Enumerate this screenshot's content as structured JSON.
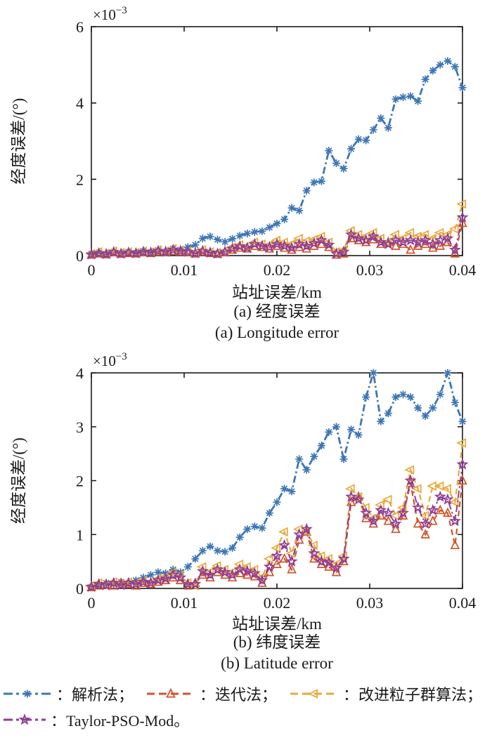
{
  "page": {
    "background": "#ffffff",
    "axis_color": "#1a1a1a",
    "text_color": "#1a1a1a"
  },
  "chart_data": [
    {
      "type": "line",
      "scale_base": "×10",
      "scale_exp": "−3",
      "unit_multiplier": 0.001,
      "xlabel": "站址误差/km",
      "ylabel": "经度误差/(°)",
      "captions": [
        "(a) 经度误差",
        "(a) Longitude error"
      ],
      "xlim": [
        0,
        0.04
      ],
      "ylim": [
        0,
        6
      ],
      "xticks": [
        0,
        0.01,
        0.02,
        0.03,
        0.04
      ],
      "xtick_labels": [
        "0",
        "0.01",
        "0.02",
        "0.03",
        "0.04"
      ],
      "yticks": [
        0,
        2,
        4,
        6
      ],
      "grid": false,
      "legend_position": "outside-bottom",
      "x": [
        0,
        0.0008,
        0.0016,
        0.0024,
        0.0032,
        0.004,
        0.0048,
        0.0056,
        0.0064,
        0.0072,
        0.008,
        0.0088,
        0.0096,
        0.0104,
        0.0112,
        0.012,
        0.0128,
        0.0136,
        0.0144,
        0.0152,
        0.016,
        0.0168,
        0.0176,
        0.0184,
        0.0192,
        0.02,
        0.0208,
        0.0216,
        0.0224,
        0.0232,
        0.024,
        0.0248,
        0.0256,
        0.0264,
        0.0272,
        0.028,
        0.0288,
        0.0296,
        0.0304,
        0.0312,
        0.032,
        0.0328,
        0.0336,
        0.0344,
        0.0352,
        0.036,
        0.0368,
        0.0376,
        0.0384,
        0.0392,
        0.04
      ],
      "series": [
        {
          "name": "解析法",
          "color": "#3E76B5",
          "marker": "asterisk",
          "linestyle": "dashdot",
          "width": 2.8,
          "values": [
            0.05,
            0.08,
            0.04,
            0.1,
            0.06,
            0.1,
            0.07,
            0.12,
            0.09,
            0.14,
            0.1,
            0.18,
            0.15,
            0.22,
            0.28,
            0.45,
            0.5,
            0.42,
            0.36,
            0.44,
            0.52,
            0.58,
            0.62,
            0.64,
            0.74,
            0.84,
            0.95,
            1.25,
            1.18,
            1.7,
            1.92,
            1.95,
            2.75,
            2.42,
            2.28,
            2.8,
            3.05,
            3.02,
            3.3,
            3.6,
            3.35,
            4.1,
            4.15,
            4.18,
            4.05,
            4.62,
            4.85,
            5.0,
            5.1,
            4.95,
            4.4
          ]
        },
        {
          "name": "迭代法",
          "color": "#D3532B",
          "marker": "triangle-up",
          "linestyle": "dashed",
          "width": 2.2,
          "values": [
            0.02,
            0.05,
            0.03,
            0.08,
            0.04,
            0.06,
            0.05,
            0.08,
            0.06,
            0.1,
            0.08,
            0.12,
            0.1,
            0.08,
            0.05,
            0.1,
            0.06,
            0.04,
            0.08,
            0.15,
            0.2,
            0.18,
            0.25,
            0.22,
            0.18,
            0.25,
            0.2,
            0.15,
            0.22,
            0.18,
            0.25,
            0.3,
            0.22,
            0.02,
            0.05,
            0.45,
            0.4,
            0.35,
            0.42,
            0.3,
            0.35,
            0.25,
            0.3,
            0.15,
            0.25,
            0.3,
            0.2,
            0.25,
            0.35,
            0.05,
            0.85
          ]
        },
        {
          "name": "改进粒子群算法",
          "color": "#E9A83B",
          "marker": "triangle-left",
          "linestyle": "dashed",
          "width": 2.2,
          "values": [
            0.05,
            0.1,
            0.06,
            0.12,
            0.08,
            0.1,
            0.08,
            0.12,
            0.1,
            0.15,
            0.12,
            0.18,
            0.15,
            0.12,
            0.08,
            0.15,
            0.1,
            0.08,
            0.12,
            0.22,
            0.28,
            0.25,
            0.35,
            0.3,
            0.28,
            0.4,
            0.35,
            0.3,
            0.45,
            0.38,
            0.42,
            0.5,
            0.35,
            0.1,
            0.15,
            0.65,
            0.55,
            0.5,
            0.6,
            0.45,
            0.35,
            0.55,
            0.45,
            0.6,
            0.5,
            0.55,
            0.45,
            0.6,
            0.55,
            0.7,
            1.35
          ]
        },
        {
          "name": "Taylor-PSO-Mod",
          "color": "#8E3D97",
          "marker": "star5",
          "linestyle": "dashdot",
          "width": 2.0,
          "values": [
            0.03,
            0.06,
            0.04,
            0.09,
            0.05,
            0.08,
            0.06,
            0.1,
            0.08,
            0.12,
            0.1,
            0.15,
            0.12,
            0.1,
            0.06,
            0.12,
            0.08,
            0.05,
            0.1,
            0.18,
            0.24,
            0.2,
            0.3,
            0.25,
            0.22,
            0.3,
            0.25,
            0.2,
            0.3,
            0.25,
            0.32,
            0.4,
            0.28,
            0.05,
            0.1,
            0.55,
            0.45,
            0.4,
            0.5,
            0.35,
            0.3,
            0.4,
            0.35,
            0.4,
            0.35,
            0.4,
            0.3,
            0.4,
            0.45,
            0.15,
            1.0
          ]
        }
      ]
    },
    {
      "type": "line",
      "scale_base": "×10",
      "scale_exp": "−3",
      "unit_multiplier": 0.001,
      "xlabel": "站址误差/km",
      "ylabel": "经度误差/(°)",
      "captions": [
        "(b) 纬度误差",
        "(b) Latitude error"
      ],
      "xlim": [
        0,
        0.04
      ],
      "ylim": [
        0,
        4
      ],
      "xticks": [
        0,
        0.01,
        0.02,
        0.03,
        0.04
      ],
      "xtick_labels": [
        "0",
        "0.01",
        "0.02",
        "0.03",
        "0.04"
      ],
      "yticks": [
        0,
        1,
        2,
        3,
        4
      ],
      "grid": false,
      "legend_position": "outside-bottom",
      "x": [
        0,
        0.0008,
        0.0016,
        0.0024,
        0.0032,
        0.004,
        0.0048,
        0.0056,
        0.0064,
        0.0072,
        0.008,
        0.0088,
        0.0096,
        0.0104,
        0.0112,
        0.012,
        0.0128,
        0.0136,
        0.0144,
        0.0152,
        0.016,
        0.0168,
        0.0176,
        0.0184,
        0.0192,
        0.02,
        0.0208,
        0.0216,
        0.0224,
        0.0232,
        0.024,
        0.0248,
        0.0256,
        0.0264,
        0.0272,
        0.028,
        0.0288,
        0.0296,
        0.0304,
        0.0312,
        0.032,
        0.0328,
        0.0336,
        0.0344,
        0.0352,
        0.036,
        0.0368,
        0.0376,
        0.0384,
        0.0392,
        0.04
      ],
      "series": [
        {
          "name": "解析法",
          "color": "#3E76B5",
          "marker": "asterisk",
          "linestyle": "dashdot",
          "width": 2.8,
          "values": [
            0.02,
            0.06,
            0.1,
            0.08,
            0.12,
            0.1,
            0.15,
            0.2,
            0.25,
            0.3,
            0.28,
            0.35,
            0.3,
            0.4,
            0.55,
            0.7,
            0.78,
            0.7,
            0.68,
            0.75,
            0.95,
            1.1,
            1.15,
            1.12,
            1.4,
            1.6,
            1.85,
            1.8,
            2.4,
            2.2,
            2.45,
            2.65,
            2.9,
            3.0,
            2.4,
            2.95,
            2.85,
            3.55,
            4.0,
            3.1,
            3.25,
            3.55,
            3.6,
            3.55,
            3.35,
            3.2,
            3.35,
            3.6,
            4.0,
            3.45,
            3.1
          ]
        },
        {
          "name": "迭代法",
          "color": "#D3532B",
          "marker": "triangle-up",
          "linestyle": "dashed",
          "width": 2.2,
          "values": [
            0.02,
            0.05,
            0.08,
            0.05,
            0.1,
            0.08,
            0.05,
            0.1,
            0.08,
            0.12,
            0.15,
            0.2,
            0.15,
            0.05,
            0.1,
            0.25,
            0.2,
            0.3,
            0.25,
            0.2,
            0.28,
            0.25,
            0.22,
            0.1,
            0.3,
            0.45,
            0.55,
            0.35,
            0.9,
            1.05,
            0.55,
            0.45,
            0.4,
            0.3,
            0.5,
            1.6,
            1.7,
            1.3,
            1.2,
            1.35,
            1.25,
            1.1,
            1.35,
            1.95,
            1.2,
            1.0,
            1.25,
            1.45,
            1.4,
            0.8,
            2.0
          ]
        },
        {
          "name": "改进粒子群算法",
          "color": "#E9A83B",
          "marker": "triangle-left",
          "linestyle": "dashed",
          "width": 2.2,
          "values": [
            0.05,
            0.1,
            0.05,
            0.12,
            0.08,
            0.12,
            0.1,
            0.15,
            0.12,
            0.18,
            0.22,
            0.3,
            0.25,
            0.1,
            0.05,
            0.4,
            0.3,
            0.42,
            0.35,
            0.3,
            0.45,
            0.4,
            0.35,
            0.2,
            0.55,
            0.75,
            1.05,
            0.65,
            1.1,
            1.05,
            0.8,
            0.6,
            0.55,
            0.45,
            0.6,
            1.85,
            1.7,
            1.5,
            1.3,
            1.55,
            1.65,
            1.35,
            1.5,
            2.2,
            1.85,
            1.35,
            1.9,
            1.9,
            1.85,
            1.6,
            2.7
          ]
        },
        {
          "name": "Taylor-PSO-Mod",
          "color": "#8E3D97",
          "marker": "star5",
          "linestyle": "dashdot",
          "width": 2.0,
          "values": [
            0.03,
            0.08,
            0.06,
            0.1,
            0.06,
            0.1,
            0.08,
            0.12,
            0.1,
            0.15,
            0.18,
            0.25,
            0.2,
            0.08,
            0.08,
            0.32,
            0.25,
            0.35,
            0.3,
            0.25,
            0.35,
            0.32,
            0.28,
            0.15,
            0.4,
            0.6,
            0.8,
            0.5,
            1.0,
            1.1,
            0.65,
            0.5,
            0.48,
            0.38,
            0.55,
            1.7,
            1.65,
            1.4,
            1.25,
            1.45,
            1.4,
            1.2,
            1.4,
            2.0,
            1.5,
            1.2,
            1.45,
            1.7,
            1.65,
            1.25,
            2.3
          ]
        }
      ]
    }
  ],
  "legend": {
    "rows": [
      [
        {
          "label": "：解析法；",
          "color": "#3E76B5",
          "marker": "asterisk",
          "linestyle": "dashdot"
        },
        {
          "label": "：迭代法；",
          "color": "#D3532B",
          "marker": "triangle-up",
          "linestyle": "dashed"
        },
        {
          "label": "：改进粒子群算法；",
          "color": "#E9A83B",
          "marker": "triangle-left",
          "linestyle": "dashed"
        }
      ],
      [
        {
          "label": "：Taylor-PSO-Mod。",
          "color": "#8E3D97",
          "marker": "star5",
          "linestyle": "dashdot"
        }
      ]
    ]
  }
}
